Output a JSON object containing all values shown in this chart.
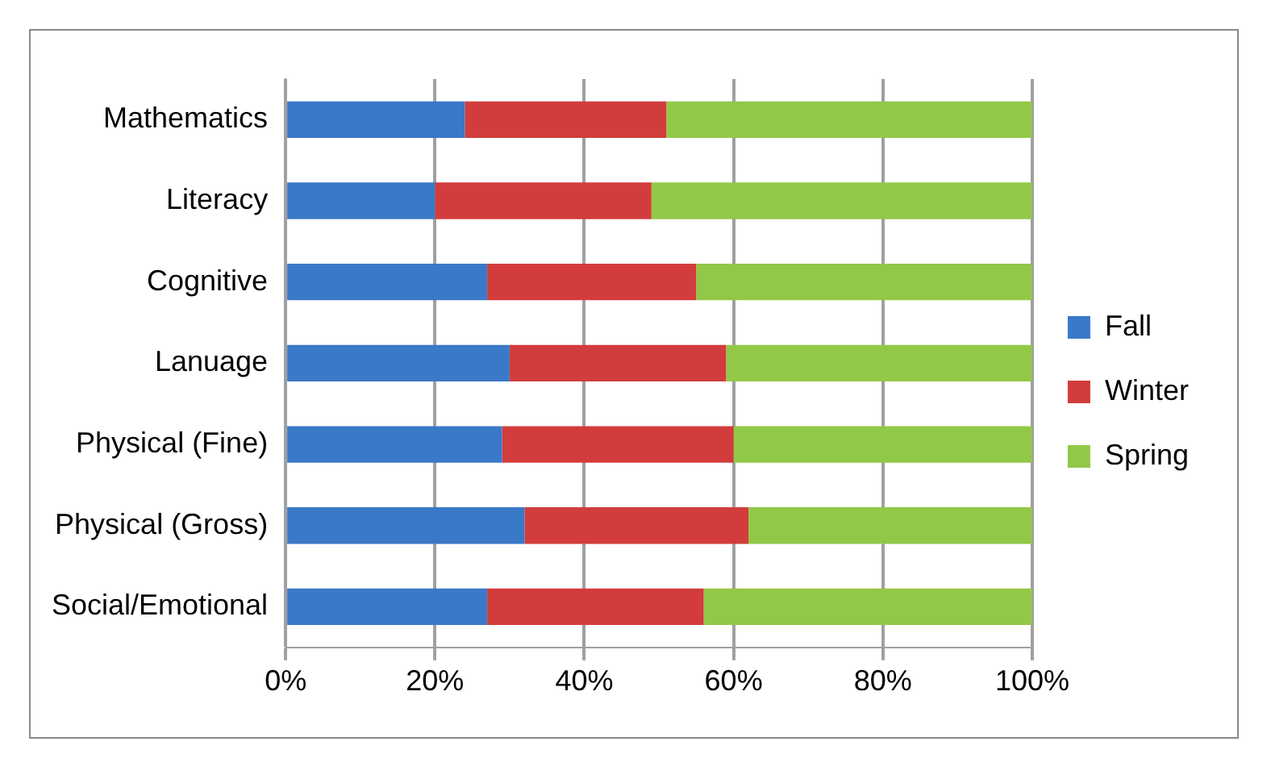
{
  "chart_data": {
    "type": "bar",
    "orientation": "horizontal",
    "stacked": true,
    "categories": [
      "Mathematics",
      "Literacy",
      "Cognitive",
      "Lanuage",
      "Physical (Fine)",
      "Physical (Gross)",
      "Social/Emotional"
    ],
    "series": [
      {
        "name": "Fall",
        "color": "#3a78c8",
        "values": [
          24,
          20,
          27,
          30,
          29,
          32,
          27
        ]
      },
      {
        "name": "Winter",
        "color": "#d23c3c",
        "values": [
          27,
          29,
          28,
          29,
          31,
          30,
          29
        ]
      },
      {
        "name": "Spring",
        "color": "#92c847",
        "values": [
          49,
          51,
          45,
          41,
          40,
          38,
          44
        ]
      }
    ],
    "xlim": [
      0,
      100
    ],
    "xticks": [
      {
        "value": 0,
        "label": "0%"
      },
      {
        "value": 20,
        "label": "20%"
      },
      {
        "value": 40,
        "label": "40%"
      },
      {
        "value": 60,
        "label": "60%"
      },
      {
        "value": 80,
        "label": "80%"
      },
      {
        "value": 100,
        "label": "100%"
      }
    ],
    "grid": "x",
    "legend": "right"
  }
}
